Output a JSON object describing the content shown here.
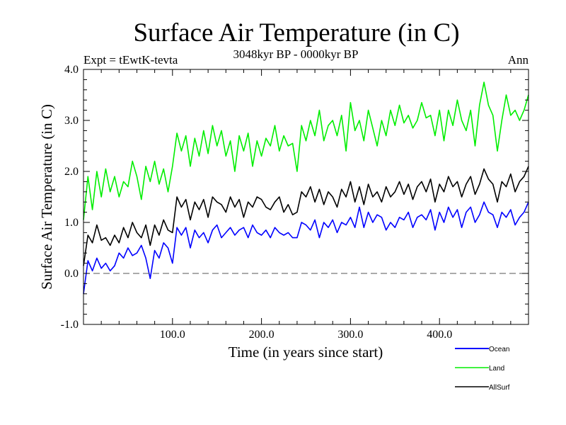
{
  "chart_data": {
    "type": "line",
    "title": "Surface Air Temperature (in C)",
    "subtitle": "3048kyr BP - 0000kyr BP",
    "left_annotation": "Expt = tEwtK-tevta",
    "right_annotation": "Ann",
    "xlabel": "Time (in years since start)",
    "ylabel": "Surface Air Temperature (in C)",
    "xlim": [
      0,
      500
    ],
    "ylim": [
      -1.0,
      4.0
    ],
    "x_ticks": [
      100,
      200,
      300,
      400
    ],
    "x_tick_labels": [
      "100.0",
      "200.0",
      "300.0",
      "400.0"
    ],
    "y_ticks": [
      -1,
      0,
      1,
      2,
      3,
      4
    ],
    "y_tick_labels": [
      "-1.0",
      "0.0",
      "1.0",
      "2.0",
      "3.0",
      "4.0"
    ],
    "reference_line": {
      "y": 0.0,
      "style": "dashed",
      "color": "#555555"
    },
    "grid": false,
    "legend_placement": "bottom-right, outside plot",
    "x": [
      0,
      5,
      10,
      15,
      20,
      25,
      30,
      35,
      40,
      45,
      50,
      55,
      60,
      65,
      70,
      75,
      80,
      85,
      90,
      95,
      100,
      105,
      110,
      115,
      120,
      125,
      130,
      135,
      140,
      145,
      150,
      155,
      160,
      165,
      170,
      175,
      180,
      185,
      190,
      195,
      200,
      205,
      210,
      215,
      220,
      225,
      230,
      235,
      240,
      245,
      250,
      255,
      260,
      265,
      270,
      275,
      280,
      285,
      290,
      295,
      300,
      305,
      310,
      315,
      320,
      325,
      330,
      335,
      340,
      345,
      350,
      355,
      360,
      365,
      370,
      375,
      380,
      385,
      390,
      395,
      400,
      405,
      410,
      415,
      420,
      425,
      430,
      435,
      440,
      445,
      450,
      455,
      460,
      465,
      470,
      475,
      480,
      485,
      490,
      495,
      500
    ],
    "series": [
      {
        "name": "Ocean",
        "color": "#0000ff",
        "values": [
          -0.4,
          0.25,
          0.05,
          0.3,
          0.1,
          0.2,
          0.05,
          0.15,
          0.4,
          0.3,
          0.5,
          0.35,
          0.4,
          0.55,
          0.3,
          -0.1,
          0.45,
          0.3,
          0.6,
          0.5,
          0.2,
          0.9,
          0.75,
          0.9,
          0.5,
          0.85,
          0.7,
          0.8,
          0.6,
          0.85,
          0.95,
          0.7,
          0.8,
          0.9,
          0.75,
          0.85,
          0.9,
          0.7,
          0.95,
          0.8,
          0.75,
          0.85,
          0.7,
          0.9,
          0.8,
          0.75,
          0.8,
          0.7,
          0.7,
          1.0,
          0.95,
          0.85,
          1.05,
          0.7,
          1.0,
          0.9,
          1.05,
          0.8,
          1.0,
          0.95,
          1.1,
          0.9,
          1.3,
          0.9,
          1.2,
          1.0,
          1.15,
          1.1,
          0.85,
          1.0,
          0.9,
          1.1,
          1.05,
          1.2,
          0.9,
          1.1,
          1.15,
          1.05,
          1.25,
          0.85,
          1.2,
          1.0,
          1.3,
          1.1,
          1.25,
          0.9,
          1.2,
          1.3,
          1.0,
          1.15,
          1.4,
          1.2,
          1.15,
          0.9,
          1.2,
          1.1,
          1.25,
          0.95,
          1.1,
          1.2,
          1.4
        ]
      },
      {
        "name": "Land",
        "color": "#00ee00",
        "values": [
          1.05,
          1.9,
          1.25,
          2.0,
          1.5,
          2.05,
          1.6,
          1.9,
          1.5,
          1.8,
          1.7,
          2.2,
          1.9,
          1.45,
          2.1,
          1.8,
          2.2,
          1.75,
          2.05,
          1.6,
          2.1,
          2.75,
          2.4,
          2.7,
          2.1,
          2.65,
          2.3,
          2.8,
          2.35,
          2.9,
          2.5,
          2.8,
          2.3,
          2.6,
          2.0,
          2.7,
          2.4,
          2.75,
          2.1,
          2.6,
          2.3,
          2.65,
          2.5,
          2.9,
          2.4,
          2.7,
          2.5,
          2.55,
          2.0,
          2.9,
          2.6,
          3.0,
          2.7,
          3.2,
          2.6,
          2.9,
          3.0,
          2.7,
          3.1,
          2.4,
          3.35,
          2.8,
          3.0,
          2.6,
          3.2,
          2.85,
          2.5,
          3.0,
          2.7,
          3.2,
          2.9,
          3.3,
          2.95,
          3.1,
          2.85,
          3.0,
          3.35,
          3.05,
          3.1,
          2.7,
          3.2,
          2.6,
          3.2,
          2.9,
          3.4,
          3.0,
          2.8,
          3.2,
          2.5,
          3.3,
          3.75,
          3.3,
          3.1,
          2.4,
          3.0,
          3.5,
          3.1,
          3.2,
          3.0,
          3.2,
          3.5
        ]
      },
      {
        "name": "AllSurf",
        "color": "#000000",
        "values": [
          0.15,
          0.75,
          0.6,
          0.95,
          0.65,
          0.7,
          0.55,
          0.75,
          0.6,
          0.9,
          0.7,
          1.0,
          0.8,
          0.7,
          0.95,
          0.55,
          0.95,
          0.75,
          1.05,
          0.85,
          0.8,
          1.5,
          1.3,
          1.45,
          1.05,
          1.4,
          1.25,
          1.45,
          1.1,
          1.5,
          1.4,
          1.35,
          1.2,
          1.5,
          1.3,
          1.45,
          1.1,
          1.4,
          1.3,
          1.5,
          1.45,
          1.3,
          1.25,
          1.4,
          1.5,
          1.2,
          1.35,
          1.15,
          1.2,
          1.6,
          1.5,
          1.7,
          1.4,
          1.65,
          1.35,
          1.6,
          1.5,
          1.3,
          1.65,
          1.5,
          1.8,
          1.4,
          1.7,
          1.35,
          1.75,
          1.5,
          1.6,
          1.4,
          1.7,
          1.5,
          1.6,
          1.8,
          1.55,
          1.75,
          1.45,
          1.7,
          1.8,
          1.6,
          1.85,
          1.4,
          1.75,
          1.6,
          1.9,
          1.7,
          1.8,
          1.5,
          1.75,
          1.9,
          1.55,
          1.75,
          2.05,
          1.85,
          1.75,
          1.4,
          1.8,
          1.7,
          1.95,
          1.6,
          1.8,
          1.9,
          2.1
        ]
      }
    ],
    "legend": [
      {
        "label": "Ocean",
        "color": "#0000ff"
      },
      {
        "label": "Land",
        "color": "#00ee00"
      },
      {
        "label": "AllSurf",
        "color": "#000000"
      }
    ]
  }
}
